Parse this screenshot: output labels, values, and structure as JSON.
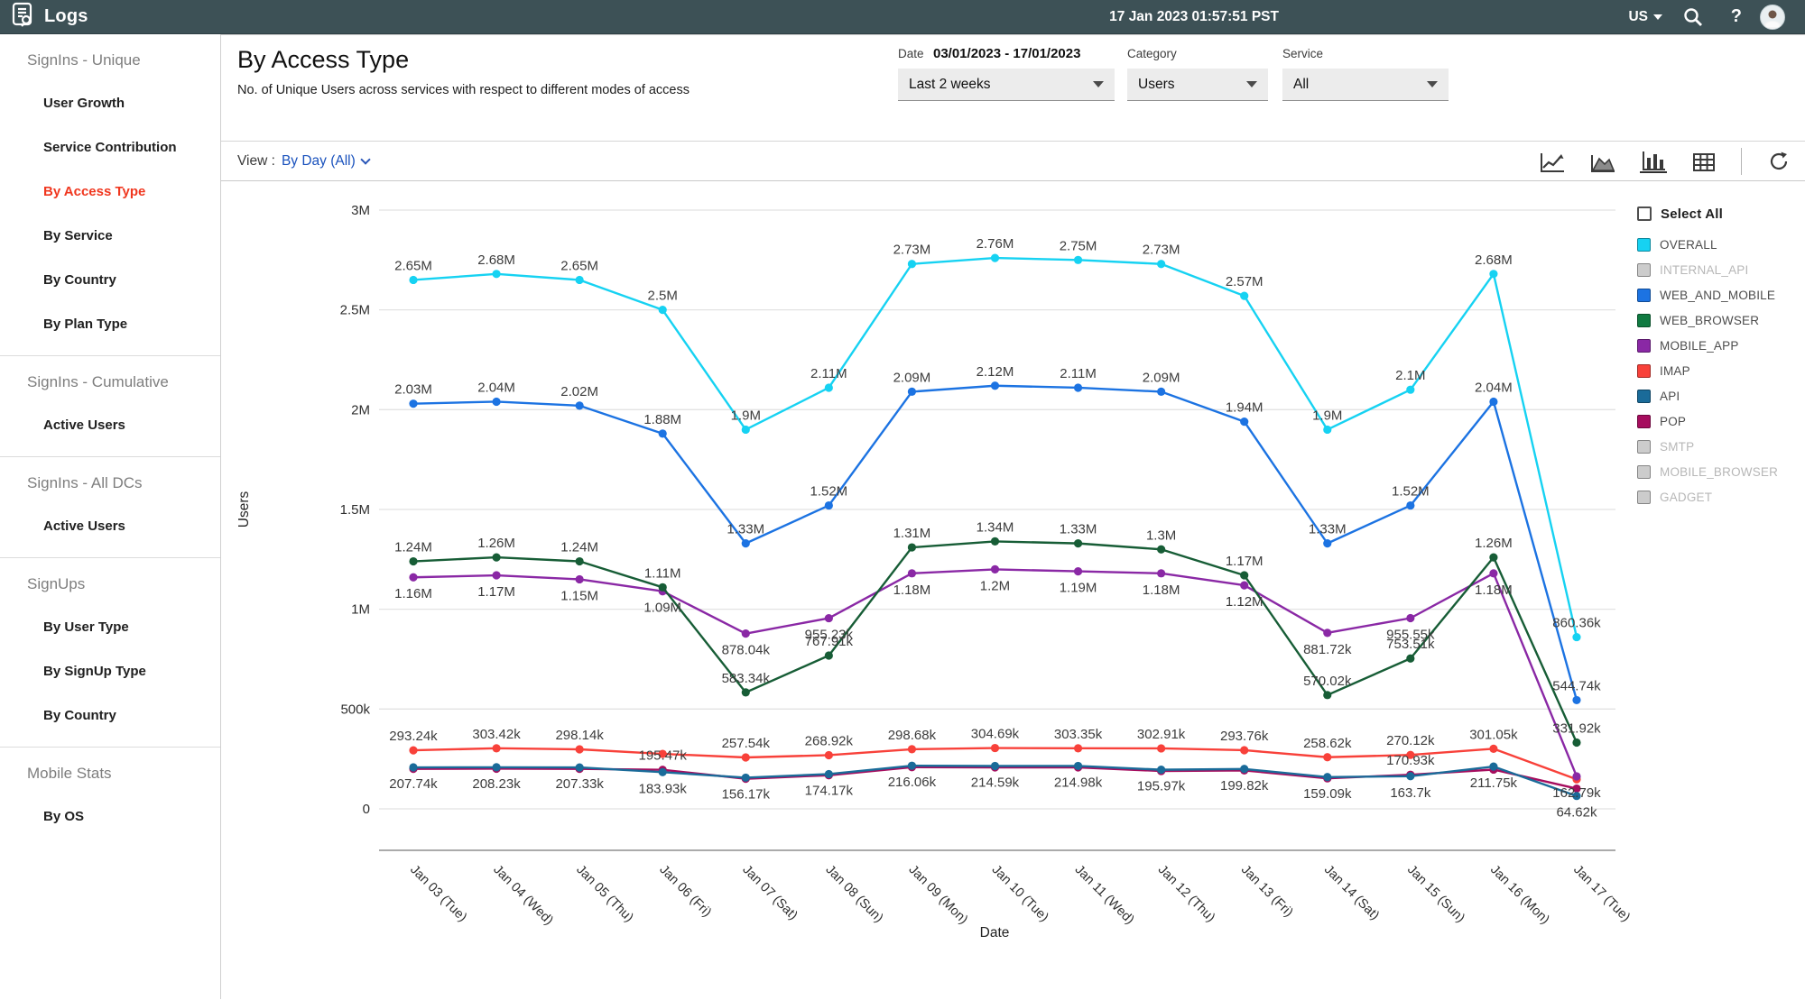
{
  "header": {
    "app_title": "Logs",
    "datetime": "17 Jan 2023  01:57:51 PST",
    "region": "US",
    "help_label": "?"
  },
  "sidebar": {
    "sections": [
      {
        "title": "SignIns - Unique",
        "items": [
          {
            "label": "User Growth",
            "active": false
          },
          {
            "label": "Service Contribution",
            "active": false
          },
          {
            "label": "By Access Type",
            "active": true
          },
          {
            "label": "By Service",
            "active": false
          },
          {
            "label": "By Country",
            "active": false
          },
          {
            "label": "By Plan Type",
            "active": false
          }
        ]
      },
      {
        "title": "SignIns - Cumulative",
        "items": [
          {
            "label": "Active Users",
            "active": false
          }
        ]
      },
      {
        "title": "SignIns - All DCs",
        "items": [
          {
            "label": "Active Users",
            "active": false
          }
        ]
      },
      {
        "title": "SignUps",
        "items": [
          {
            "label": "By User Type",
            "active": false
          },
          {
            "label": "By SignUp Type",
            "active": false
          },
          {
            "label": "By Country",
            "active": false
          }
        ]
      },
      {
        "title": "Mobile Stats",
        "items": [
          {
            "label": "By OS",
            "active": false
          }
        ]
      }
    ]
  },
  "page": {
    "title": "By Access Type",
    "subtitle": "No. of Unique Users across services with respect to different modes of access"
  },
  "filters": {
    "date_label": "Date",
    "date_value": "03/01/2023 - 17/01/2023",
    "date_range_value": "Last 2 weeks",
    "category_label": "Category",
    "category_value": "Users",
    "service_label": "Service",
    "service_value": "All"
  },
  "toolbar": {
    "view_label": "View :",
    "view_value": "By Day  (All)"
  },
  "legend": {
    "select_all_label": "Select All",
    "items": [
      {
        "label": "OVERALL",
        "color": "#16d2f2",
        "enabled": true
      },
      {
        "label": "INTERNAL_API",
        "color": "#cccccc",
        "enabled": false
      },
      {
        "label": "WEB_AND_MOBILE",
        "color": "#1c73e2",
        "enabled": true
      },
      {
        "label": "WEB_BROWSER",
        "color": "#107a41",
        "enabled": true
      },
      {
        "label": "MOBILE_APP",
        "color": "#8a28a5",
        "enabled": true
      },
      {
        "label": "IMAP",
        "color": "#f8413a",
        "enabled": true
      },
      {
        "label": "API",
        "color": "#1a6b99",
        "enabled": true
      },
      {
        "label": "POP",
        "color": "#a60d5e",
        "enabled": true
      },
      {
        "label": "SMTP",
        "color": "#cccccc",
        "enabled": false
      },
      {
        "label": "MOBILE_BROWSER",
        "color": "#cccccc",
        "enabled": false
      },
      {
        "label": "GADGET",
        "color": "#cccccc",
        "enabled": false
      }
    ]
  },
  "chart_data": {
    "type": "line",
    "title": "By Access Type",
    "xlabel": "Date",
    "ylabel": "Users",
    "ylim": [
      0,
      3000000
    ],
    "grid": true,
    "legend_position": "right",
    "yticks": [
      {
        "label": "3M",
        "value": 3000000
      },
      {
        "label": "2.5M",
        "value": 2500000
      },
      {
        "label": "2M",
        "value": 2000000
      },
      {
        "label": "1.5M",
        "value": 1500000
      },
      {
        "label": "1M",
        "value": 1000000
      },
      {
        "label": "500k",
        "value": 500000
      },
      {
        "label": "0",
        "value": 0
      }
    ],
    "categories": [
      "Jan 03 (Tue)",
      "Jan 04 (Wed)",
      "Jan 05 (Thu)",
      "Jan 06 (Fri)",
      "Jan 07 (Sat)",
      "Jan 08 (Sun)",
      "Jan 09 (Mon)",
      "Jan 10 (Tue)",
      "Jan 11 (Wed)",
      "Jan 12 (Thu)",
      "Jan 13 (Fri)",
      "Jan 14 (Sat)",
      "Jan 15 (Sun)",
      "Jan 16 (Mon)",
      "Jan 17 (Tue)"
    ],
    "series": [
      {
        "name": "POP",
        "color": "#a60d5e",
        "label_side": "above",
        "values": [
          200500,
          201200,
          200400,
          195470,
          150800,
          168300,
          208900,
          207600,
          207800,
          189400,
          192600,
          152700,
          170930,
          196800,
          101400
        ],
        "labels": [
          "",
          "",
          "",
          "195.47k",
          "",
          "",
          "",
          "",
          "",
          "",
          "",
          "",
          "170.93k",
          "",
          ""
        ]
      },
      {
        "name": "API",
        "color": "#1a6b99",
        "label_side": "below",
        "values": [
          207740,
          208230,
          207330,
          183930,
          156170,
          174170,
          216060,
          214590,
          214980,
          195970,
          199820,
          159090,
          163700,
          211750,
          64620
        ],
        "labels": [
          "207.74k",
          "208.23k",
          "207.33k",
          "183.93k",
          "156.17k",
          "174.17k",
          "216.06k",
          "214.59k",
          "214.98k",
          "195.97k",
          "199.82k",
          "159.09k",
          "163.7k",
          "211.75k",
          "64.62k"
        ]
      },
      {
        "name": "IMAP",
        "color": "#f8413a",
        "label_side": "above",
        "values": [
          293240,
          303420,
          298140,
          275400,
          257540,
          268920,
          298680,
          304690,
          303350,
          302910,
          293760,
          258620,
          270120,
          301050,
          147800
        ],
        "labels": [
          "293.24k",
          "303.42k",
          "298.14k",
          "",
          "257.54k",
          "268.92k",
          "298.68k",
          "304.69k",
          "303.35k",
          "302.91k",
          "293.76k",
          "258.62k",
          "270.12k",
          "301.05k",
          ""
        ]
      },
      {
        "name": "MOBILE_APP",
        "color": "#8a28a5",
        "label_side": "below",
        "values": [
          1160000,
          1170000,
          1150000,
          1090000,
          878040,
          955230,
          1180000,
          1200000,
          1190000,
          1180000,
          1120000,
          881720,
          955550,
          1180000,
          162790
        ],
        "labels": [
          "1.16M",
          "1.17M",
          "1.15M",
          "1.09M",
          "878.04k",
          "955.23k",
          "1.18M",
          "1.2M",
          "1.19M",
          "1.18M",
          "1.12M",
          "881.72k",
          "955.55k",
          "1.18M",
          "162.79k"
        ]
      },
      {
        "name": "WEB_BROWSER",
        "color": "#175d36",
        "label_side": "above",
        "values": [
          1240000,
          1260000,
          1240000,
          1110000,
          583340,
          767910,
          1310000,
          1340000,
          1330000,
          1300000,
          1170000,
          570020,
          753510,
          1260000,
          331920
        ],
        "labels": [
          "1.24M",
          "1.26M",
          "1.24M",
          "1.11M",
          "583.34k",
          "767.91k",
          "1.31M",
          "1.34M",
          "1.33M",
          "1.3M",
          "1.17M",
          "570.02k",
          "753.51k",
          "1.26M",
          "331.92k"
        ]
      },
      {
        "name": "WEB_AND_MOBILE",
        "color": "#1c73e2",
        "label_side": "above",
        "values": [
          2030000,
          2040000,
          2020000,
          1880000,
          1330000,
          1520000,
          2090000,
          2120000,
          2110000,
          2090000,
          1940000,
          1330000,
          1520000,
          2040000,
          544740
        ],
        "labels": [
          "2.03M",
          "2.04M",
          "2.02M",
          "1.88M",
          "1.33M",
          "1.52M",
          "2.09M",
          "2.12M",
          "2.11M",
          "2.09M",
          "1.94M",
          "1.33M",
          "1.52M",
          "2.04M",
          "544.74k"
        ]
      },
      {
        "name": "OVERALL",
        "color": "#16d2f2",
        "label_side": "above",
        "values": [
          2650000,
          2680000,
          2650000,
          2500000,
          1900000,
          2110000,
          2730000,
          2760000,
          2750000,
          2730000,
          2570000,
          1900000,
          2100000,
          2680000,
          860360
        ],
        "labels": [
          "2.65M",
          "2.68M",
          "2.65M",
          "2.5M",
          "1.9M",
          "2.11M",
          "2.73M",
          "2.76M",
          "2.75M",
          "2.73M",
          "2.57M",
          "1.9M",
          "2.1M",
          "2.68M",
          "860.36k"
        ]
      }
    ]
  }
}
